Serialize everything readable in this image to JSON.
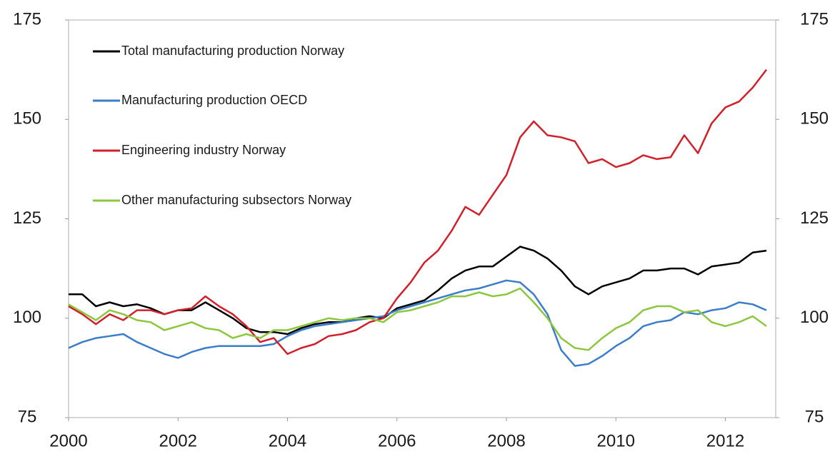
{
  "chart_data": {
    "type": "line",
    "x": [
      2000,
      2000.25,
      2000.5,
      2000.75,
      2001,
      2001.25,
      2001.5,
      2001.75,
      2002,
      2002.25,
      2002.5,
      2002.75,
      2003,
      2003.25,
      2003.5,
      2003.75,
      2004,
      2004.25,
      2004.5,
      2004.75,
      2005,
      2005.25,
      2005.5,
      2005.75,
      2006,
      2006.25,
      2006.5,
      2006.75,
      2007,
      2007.25,
      2007.5,
      2007.75,
      2008,
      2008.25,
      2008.5,
      2008.75,
      2009,
      2009.25,
      2009.5,
      2009.75,
      2010,
      2010.25,
      2010.5,
      2010.75,
      2011,
      2011.25,
      2011.5,
      2011.75,
      2012,
      2012.25,
      2012.5,
      2012.75
    ],
    "series": [
      {
        "name": "Total manufacturing production Norway",
        "color": "#000000",
        "values": [
          106,
          106,
          103,
          104,
          103,
          103.5,
          102.5,
          101,
          102,
          102,
          104,
          102,
          100,
          97.5,
          96.5,
          96.5,
          96,
          97.5,
          98.5,
          99,
          99,
          100,
          100.5,
          100,
          102.5,
          103.5,
          104.5,
          107,
          110,
          112,
          113,
          113,
          115.5,
          118,
          117,
          115,
          112,
          108,
          106,
          108,
          109,
          110,
          112,
          112,
          112.5,
          112.5,
          111,
          113,
          113.5,
          114,
          116.5,
          117
        ]
      },
      {
        "name": "Manufacturing production OECD",
        "color": "#3a7dc9",
        "values": [
          92.5,
          94,
          95,
          95.5,
          96,
          94,
          92.5,
          91,
          90,
          91.5,
          92.5,
          93,
          93,
          93,
          93,
          93.5,
          95.5,
          97,
          98,
          98.5,
          99,
          99.5,
          100,
          100.5,
          102,
          103,
          104,
          105,
          106,
          107,
          107.5,
          108.5,
          109.5,
          109,
          106,
          101,
          92,
          88,
          88.5,
          90.5,
          93,
          95,
          98,
          99,
          99.5,
          101.5,
          101,
          102,
          102.5,
          104,
          103.5,
          102
        ]
      },
      {
        "name": "Engineering industry Norway",
        "color": "#d0202a",
        "values": [
          103,
          101,
          98.5,
          101,
          99.5,
          102,
          102,
          101,
          102,
          102.5,
          105.5,
          103,
          101,
          98,
          94,
          95,
          91,
          92.5,
          93.5,
          95.5,
          96,
          97,
          99,
          100,
          105,
          109,
          114,
          117,
          122,
          128,
          126,
          131,
          136,
          145.5,
          149.5,
          146,
          145.5,
          144.5,
          139,
          140,
          138,
          139,
          141,
          140,
          140.5,
          146,
          141.5,
          149,
          153,
          154.5,
          158,
          162.5
        ]
      },
      {
        "name": "Other manufacturing subsectors Norway",
        "color": "#8dc63f",
        "values": [
          103.5,
          101.5,
          99.5,
          102,
          101,
          99.5,
          99,
          97,
          98,
          99,
          97.5,
          97,
          95,
          96,
          95,
          97,
          97,
          98,
          99,
          100,
          99.5,
          100,
          100,
          99,
          101.5,
          102,
          103,
          104,
          105.5,
          105.5,
          106.5,
          105.5,
          106,
          107.5,
          104,
          100,
          95,
          92.5,
          92,
          95,
          97.5,
          99,
          102,
          103,
          103,
          101.5,
          102,
          99,
          98,
          99,
          100.5,
          98
        ]
      }
    ],
    "xlim": [
      2000,
      2012.92
    ],
    "xticks": [
      2000,
      2002,
      2004,
      2006,
      2008,
      2010,
      2012
    ],
    "ylim": [
      75,
      175
    ],
    "yticks": [
      75,
      100,
      125,
      150,
      175
    ],
    "y2lim": [
      75,
      175
    ],
    "y2ticks": [
      75,
      100,
      125,
      150,
      175
    ],
    "grid": false,
    "legend": "upper left"
  }
}
